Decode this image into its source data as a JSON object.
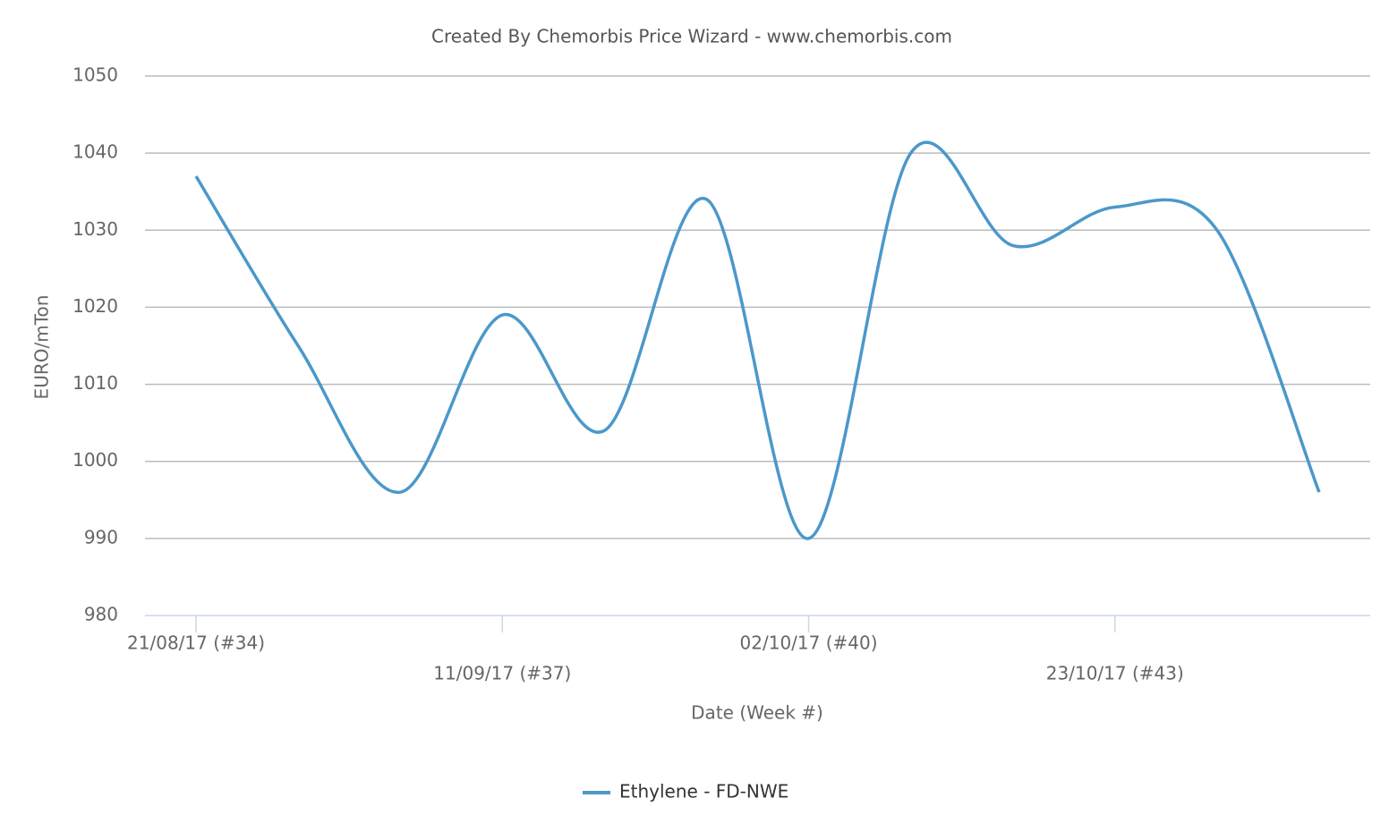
{
  "chart_data": {
    "type": "line",
    "title": "Created By Chemorbis Price Wizard - www.chemorbis.com",
    "x_label": "Date (Week #)",
    "y_label": "EURO/mTon",
    "categories": [
      "21/08/17 (#34)",
      null,
      null,
      "11/09/17 (#37)",
      null,
      null,
      "02/10/17 (#40)",
      null,
      null,
      "23/10/17 (#43)",
      null,
      null
    ],
    "series": [
      {
        "name": "Ethylene - FD-NWE",
        "color": "#4b98ca",
        "values": [
          1037,
          1015,
          996,
          1019,
          1004,
          1034,
          990,
          1040,
          1028,
          1033,
          1030,
          996
        ]
      }
    ],
    "ylim": [
      980,
      1050
    ],
    "yticks": [
      980,
      990,
      1000,
      1010,
      1020,
      1030,
      1040,
      1050
    ],
    "grid": true
  }
}
